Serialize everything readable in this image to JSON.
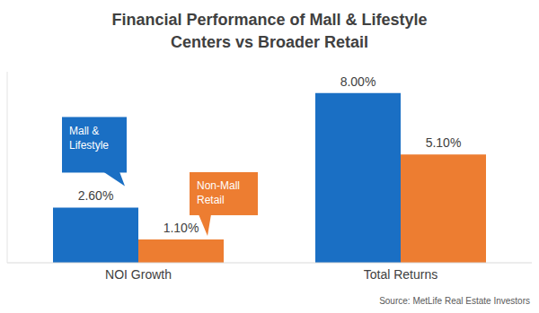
{
  "chart_data": {
    "type": "bar",
    "title": "Financial Performance of Mall & Lifestyle Centers vs Broader Retail",
    "source": "Source: MetLife Real Estate Investors",
    "categories": [
      "NOI Growth",
      "Total Returns"
    ],
    "series": [
      {
        "name": "Mall & Lifestyle",
        "color": "#1a6fc4",
        "values": [
          2.6,
          8.0
        ],
        "value_labels": [
          "2.60%",
          "8.00%"
        ]
      },
      {
        "name": "Non-Mall Retail",
        "color": "#ed7d31",
        "values": [
          1.1,
          5.1
        ],
        "value_labels": [
          "1.10%",
          "5.10%"
        ]
      }
    ],
    "ylim": [
      0,
      9
    ],
    "grid": false,
    "data_labels": true,
    "tick_labels": "x"
  }
}
